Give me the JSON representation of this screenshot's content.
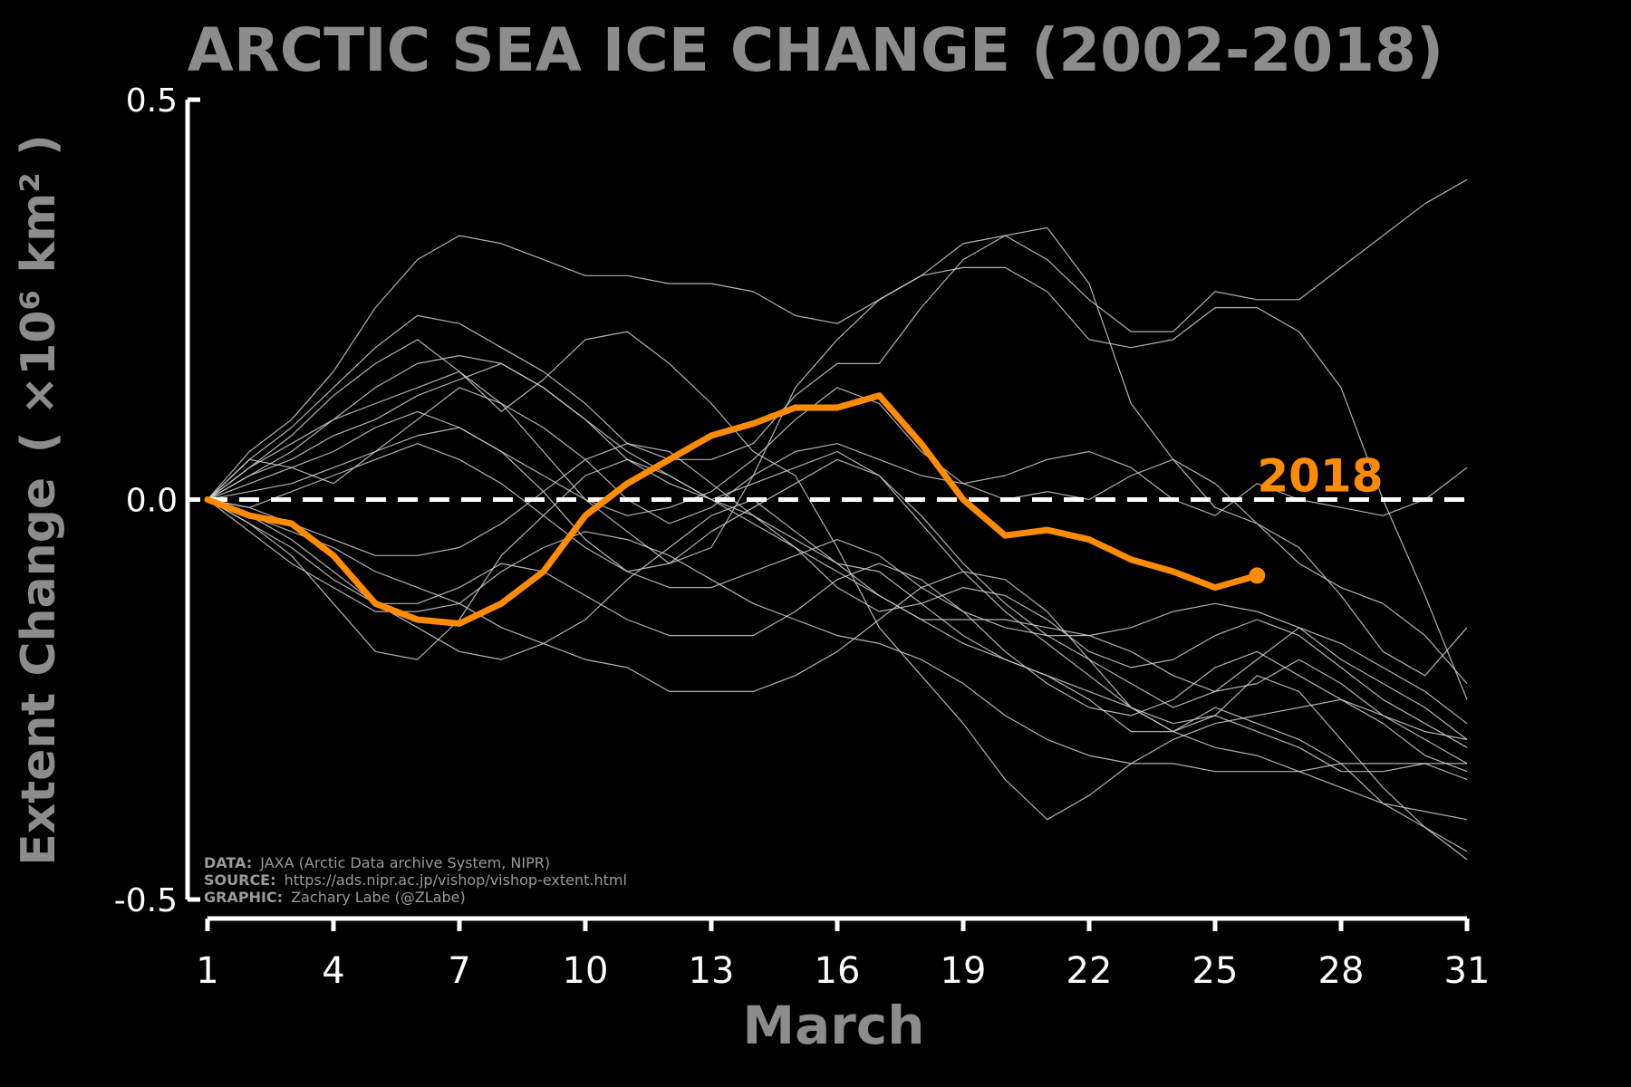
{
  "chart_data": {
    "type": "line",
    "title": "ARCTIC SEA ICE CHANGE (2002-2018)",
    "ylabel_main": "Extent Change",
    "ylabel_unit": "( ×10⁶ km² )",
    "xlabel": "March",
    "xlim": [
      1,
      31
    ],
    "ylim": [
      -0.5,
      0.5
    ],
    "xticks": [
      "1",
      "4",
      "7",
      "10",
      "13",
      "16",
      "19",
      "22",
      "25",
      "28",
      "31"
    ],
    "yticks": [
      "0.5",
      "0.0",
      "-0.5"
    ],
    "reference_line": 0.0,
    "x": [
      1,
      2,
      3,
      4,
      5,
      6,
      7,
      8,
      9,
      10,
      11,
      12,
      13,
      14,
      15,
      16,
      17,
      18,
      19,
      20,
      21,
      22,
      23,
      24,
      25,
      26,
      27,
      28,
      29,
      30,
      31
    ],
    "highlight_series": {
      "name": "2018",
      "color": "#ff8c00",
      "values": [
        0.0,
        -0.02,
        -0.03,
        -0.07,
        -0.13,
        -0.15,
        -0.155,
        -0.13,
        -0.09,
        -0.02,
        0.02,
        0.05,
        0.08,
        0.095,
        0.115,
        0.115,
        0.13,
        0.07,
        0.0,
        -0.045,
        -0.038,
        -0.05,
        -0.075,
        -0.09,
        -0.11,
        -0.095
      ]
    },
    "background_series_color": "#d0d0d0",
    "background_series": [
      [
        0.0,
        0.06,
        0.1,
        0.16,
        0.24,
        0.3,
        0.33,
        0.32,
        0.3,
        0.28,
        0.28,
        0.27,
        0.27,
        0.26,
        0.23,
        0.22,
        0.25,
        0.28,
        0.32,
        0.33,
        0.3,
        0.25,
        0.21,
        0.21,
        0.26,
        0.25,
        0.25,
        0.29,
        0.33,
        0.37,
        0.4
      ],
      [
        0.0,
        0.05,
        0.09,
        0.14,
        0.19,
        0.23,
        0.22,
        0.19,
        0.16,
        0.12,
        0.07,
        0.05,
        0.05,
        0.07,
        0.13,
        0.17,
        0.17,
        0.24,
        0.3,
        0.33,
        0.34,
        0.27,
        0.12,
        0.05,
        -0.01,
        -0.03,
        -0.06,
        -0.12,
        -0.19,
        -0.22,
        -0.16
      ],
      [
        0.0,
        0.04,
        0.07,
        0.1,
        0.12,
        0.14,
        0.16,
        0.12,
        0.06,
        0.0,
        -0.04,
        -0.08,
        -0.06,
        0.03,
        0.14,
        0.2,
        0.25,
        0.28,
        0.29,
        0.29,
        0.26,
        0.2,
        0.19,
        0.2,
        0.24,
        0.24,
        0.21,
        0.14,
        0.0,
        -0.12,
        -0.25
      ],
      [
        0.0,
        0.04,
        0.08,
        0.13,
        0.17,
        0.2,
        0.16,
        0.11,
        0.15,
        0.2,
        0.21,
        0.17,
        0.12,
        0.06,
        0.03,
        -0.06,
        -0.16,
        -0.22,
        -0.28,
        -0.35,
        -0.4,
        -0.37,
        -0.33,
        -0.3,
        -0.28,
        -0.27,
        -0.26,
        -0.25,
        -0.28,
        -0.32,
        -0.34
      ],
      [
        0.0,
        0.03,
        0.05,
        0.08,
        0.1,
        0.13,
        0.15,
        0.17,
        0.14,
        0.1,
        0.05,
        0.02,
        0.0,
        0.02,
        0.04,
        0.06,
        0.03,
        -0.03,
        -0.09,
        -0.14,
        -0.18,
        -0.22,
        -0.26,
        -0.29,
        -0.27,
        -0.22,
        -0.24,
        -0.3,
        -0.36,
        -0.41,
        -0.45
      ],
      [
        0.0,
        0.02,
        0.04,
        0.06,
        0.09,
        0.11,
        0.09,
        0.06,
        0.03,
        0.0,
        -0.02,
        -0.01,
        0.01,
        0.05,
        0.1,
        0.14,
        0.12,
        0.06,
        0.02,
        0.0,
        0.01,
        0.0,
        0.03,
        0.05,
        0.02,
        -0.03,
        -0.08,
        -0.11,
        -0.13,
        -0.17,
        -0.23
      ],
      [
        0.0,
        -0.01,
        0.01,
        0.03,
        0.05,
        0.07,
        0.05,
        0.02,
        -0.02,
        -0.06,
        -0.09,
        -0.08,
        -0.04,
        -0.01,
        0.02,
        0.05,
        0.03,
        -0.02,
        -0.08,
        -0.13,
        -0.17,
        -0.2,
        -0.23,
        -0.26,
        -0.24,
        -0.2,
        -0.16,
        -0.18,
        -0.21,
        -0.24,
        -0.28
      ],
      [
        0.0,
        -0.02,
        -0.05,
        -0.09,
        -0.13,
        -0.16,
        -0.19,
        -0.2,
        -0.18,
        -0.15,
        -0.1,
        -0.06,
        -0.02,
        0.0,
        -0.04,
        -0.08,
        -0.12,
        -0.15,
        -0.15,
        -0.15,
        -0.16,
        -0.17,
        -0.19,
        -0.22,
        -0.24,
        -0.23,
        -0.2,
        -0.23,
        -0.27,
        -0.3,
        -0.33
      ],
      [
        0.0,
        -0.03,
        -0.06,
        -0.1,
        -0.13,
        -0.13,
        -0.11,
        -0.08,
        -0.09,
        -0.12,
        -0.15,
        -0.17,
        -0.17,
        -0.17,
        -0.14,
        -0.1,
        -0.08,
        -0.1,
        -0.14,
        -0.19,
        -0.23,
        -0.26,
        -0.27,
        -0.25,
        -0.21,
        -0.19,
        -0.22,
        -0.25,
        -0.27,
        -0.29,
        -0.3
      ],
      [
        0.0,
        -0.03,
        -0.07,
        -0.13,
        -0.19,
        -0.2,
        -0.15,
        -0.07,
        -0.02,
        0.03,
        0.05,
        0.03,
        0.0,
        -0.02,
        -0.05,
        -0.08,
        -0.09,
        -0.13,
        -0.17,
        -0.2,
        -0.22,
        -0.25,
        -0.29,
        -0.29,
        -0.26,
        -0.28,
        -0.3,
        -0.33,
        -0.38,
        -0.41,
        -0.44
      ],
      [
        0.0,
        -0.04,
        -0.08,
        -0.11,
        -0.14,
        -0.14,
        -0.13,
        -0.09,
        -0.06,
        -0.04,
        -0.05,
        -0.07,
        -0.1,
        -0.13,
        -0.15,
        -0.17,
        -0.18,
        -0.2,
        -0.23,
        -0.27,
        -0.3,
        -0.32,
        -0.33,
        -0.33,
        -0.34,
        -0.34,
        -0.34,
        -0.33,
        -0.33,
        -0.33,
        -0.35
      ],
      [
        0.0,
        -0.02,
        -0.04,
        -0.06,
        -0.09,
        -0.11,
        -0.13,
        -0.16,
        -0.18,
        -0.2,
        -0.21,
        -0.24,
        -0.24,
        -0.24,
        -0.22,
        -0.19,
        -0.15,
        -0.11,
        -0.09,
        -0.1,
        -0.14,
        -0.2,
        -0.26,
        -0.28,
        -0.27,
        -0.29,
        -0.31,
        -0.34,
        -0.34,
        -0.33,
        -0.33
      ],
      [
        0.0,
        0.01,
        0.02,
        0.04,
        0.06,
        0.08,
        0.09,
        0.06,
        0.01,
        -0.05,
        -0.09,
        -0.11,
        -0.11,
        -0.09,
        -0.07,
        -0.05,
        -0.07,
        -0.11,
        -0.14,
        -0.16,
        -0.17,
        -0.17,
        -0.16,
        -0.14,
        -0.13,
        -0.14,
        -0.16,
        -0.2,
        -0.23,
        -0.26,
        -0.3
      ],
      [
        0.0,
        0.05,
        0.04,
        0.02,
        0.06,
        0.1,
        0.14,
        0.12,
        0.09,
        0.05,
        0.0,
        -0.03,
        -0.01,
        0.03,
        0.06,
        0.07,
        0.05,
        0.03,
        0.02,
        0.03,
        0.05,
        0.06,
        0.04,
        0.0,
        -0.02,
        0.02,
        0.0,
        -0.01,
        -0.02,
        0.0,
        0.04
      ],
      [
        0.0,
        0.03,
        0.06,
        0.1,
        0.14,
        0.17,
        0.18,
        0.17,
        0.14,
        0.1,
        0.06,
        0.03,
        0.0,
        -0.03,
        -0.06,
        -0.09,
        -0.12,
        -0.15,
        -0.18,
        -0.2,
        -0.22,
        -0.24,
        -0.26,
        -0.29,
        -0.31,
        -0.32,
        -0.34,
        -0.36,
        -0.38,
        -0.39,
        -0.4
      ],
      [
        0.0,
        -0.01,
        -0.03,
        -0.05,
        -0.07,
        -0.07,
        -0.06,
        -0.03,
        0.01,
        0.05,
        0.07,
        0.06,
        0.02,
        -0.02,
        -0.06,
        -0.11,
        -0.14,
        -0.13,
        -0.11,
        -0.12,
        -0.15,
        -0.19,
        -0.21,
        -0.2,
        -0.17,
        -0.15,
        -0.17,
        -0.21,
        -0.25,
        -0.28,
        -0.31
      ]
    ],
    "grid": false,
    "legend": "none"
  },
  "credits": [
    {
      "key": "DATA:",
      "value": "JAXA (Arctic Data archive System, NIPR)"
    },
    {
      "key": "SOURCE:",
      "value": "https://ads.nipr.ac.jp/vishop/vishop-extent.html"
    },
    {
      "key": "GRAPHIC:",
      "value": "Zachary Labe (@ZLabe)"
    }
  ],
  "colors": {
    "background": "#000000",
    "axis": "#ffffff",
    "title": "#8c8c8c",
    "highlight": "#ff8c00",
    "reference_line": "#ffffff"
  }
}
